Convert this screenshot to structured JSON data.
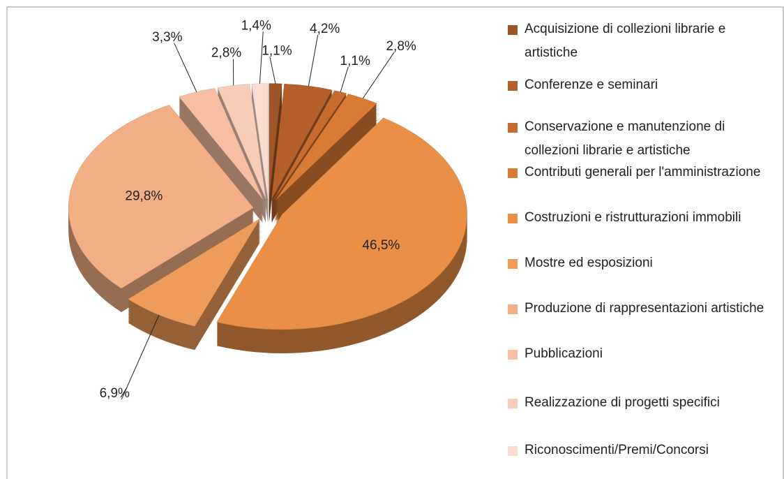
{
  "chart_data": {
    "type": "pie",
    "categories": [
      "Acquisizione di collezioni librarie e artistiche",
      "Conferenze e seminari",
      "Conservazione e manutenzione di collezioni librarie e artistiche",
      "Contributi generali per l'amministrazione",
      "Costruzioni e ristrutturazioni immobili",
      "Mostre ed esposizioni",
      "Produzione di rappresentazioni artistiche",
      "Pubblicazioni",
      "Realizzazione di progetti specifici",
      "Riconoscimenti/Premi/Concorsi"
    ],
    "values": [
      1.1,
      4.2,
      1.1,
      2.8,
      46.5,
      6.9,
      29.8,
      3.3,
      2.8,
      1.4
    ],
    "value_labels": [
      "1,1%",
      "4,2%",
      "1,1%",
      "2,8%",
      "46,5%",
      "6,9%",
      "29,8%",
      "3,3%",
      "2,8%",
      "1,4%"
    ],
    "colors": [
      "#9e5528",
      "#b5602b",
      "#c76c2f",
      "#d97a35",
      "#ea8f45",
      "#ee9c5c",
      "#f2ae84",
      "#f6bea2",
      "#f8cdb8",
      "#fadcd0"
    ],
    "legend": "right"
  }
}
